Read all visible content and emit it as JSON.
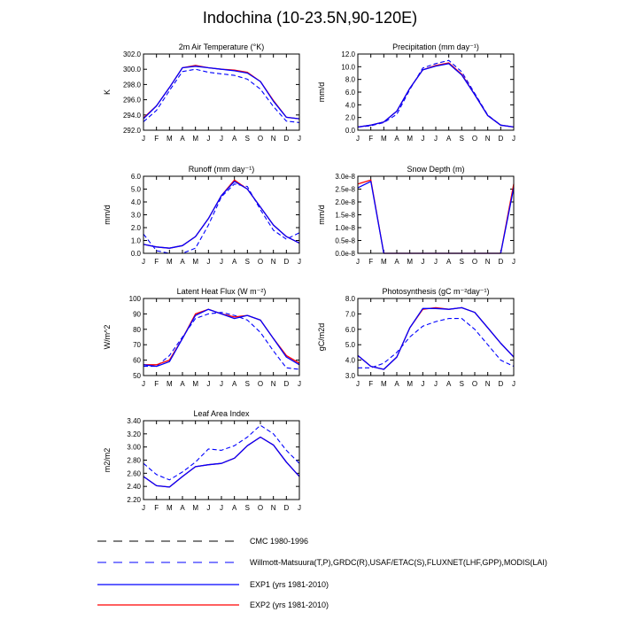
{
  "title": "Indochina (10-23.5N,90-120E)",
  "months": [
    "J",
    "F",
    "M",
    "A",
    "M",
    "J",
    "J",
    "A",
    "S",
    "O",
    "N",
    "D",
    "J"
  ],
  "colors": {
    "cmc": "#000000",
    "obs": "#0000ff",
    "exp1": "#0000ff",
    "exp2": "#ff0000"
  },
  "legend": [
    {
      "key": "cmc",
      "label": "CMC 1980-1996",
      "style": "dashed-black"
    },
    {
      "key": "obs",
      "label": "Willmott-Matsuura(T,P),GRDC(R),USAF/ETAC(S),FLUXNET(LHF,GPP),MODIS(LAI)",
      "style": "dashed-blue"
    },
    {
      "key": "exp1",
      "label": "EXP1 (yrs 1981-2010)",
      "style": "solid-blue"
    },
    {
      "key": "exp2",
      "label": "EXP2 (yrs 1981-2010)",
      "style": "solid-red"
    }
  ],
  "chart_data": [
    {
      "type": "line",
      "title": "2m Air Temperature (°K)",
      "ylabel": "K",
      "ylim": [
        292.0,
        302.0
      ],
      "yticks": [
        "292.0",
        "294.0",
        "296.0",
        "298.0",
        "300.0",
        "302.0"
      ],
      "categories": [
        "J",
        "F",
        "M",
        "A",
        "M",
        "J",
        "J",
        "A",
        "S",
        "O",
        "N",
        "D",
        "J"
      ],
      "series": [
        {
          "key": "obs",
          "values": [
            293.1,
            294.6,
            297.2,
            299.7,
            300.0,
            299.6,
            299.4,
            299.2,
            298.7,
            297.4,
            295.1,
            293.2,
            293.0
          ]
        },
        {
          "key": "exp2",
          "values": [
            293.6,
            295.2,
            297.6,
            300.2,
            300.5,
            300.2,
            300.0,
            299.9,
            299.6,
            298.4,
            295.9,
            293.7,
            293.5
          ]
        },
        {
          "key": "exp1",
          "values": [
            293.5,
            295.2,
            297.6,
            300.2,
            300.4,
            300.2,
            300.0,
            299.8,
            299.5,
            298.4,
            295.8,
            293.7,
            293.5
          ]
        }
      ]
    },
    {
      "type": "line",
      "title": "Precipitation (mm day⁻¹)",
      "ylabel": "mm/d",
      "ylim": [
        0,
        12
      ],
      "yticks": [
        "0.0",
        "2.0",
        "4.0",
        "6.0",
        "8.0",
        "10.0",
        "12.0"
      ],
      "categories": [
        "J",
        "F",
        "M",
        "A",
        "M",
        "J",
        "J",
        "A",
        "S",
        "O",
        "N",
        "D",
        "J"
      ],
      "series": [
        {
          "key": "obs",
          "values": [
            0.5,
            0.7,
            1.2,
            2.5,
            6.4,
            9.8,
            10.5,
            11.0,
            9.2,
            5.8,
            2.4,
            0.8,
            0.5
          ]
        },
        {
          "key": "exp2",
          "values": [
            0.5,
            0.8,
            1.3,
            3.0,
            6.6,
            9.5,
            10.2,
            10.6,
            8.8,
            5.6,
            2.3,
            0.8,
            0.5
          ]
        },
        {
          "key": "exp1",
          "values": [
            0.5,
            0.8,
            1.3,
            3.0,
            6.6,
            9.5,
            10.1,
            10.5,
            8.7,
            5.6,
            2.3,
            0.8,
            0.5
          ]
        }
      ]
    },
    {
      "type": "line",
      "title": "Runoff (mm day⁻¹)",
      "ylabel": "mm/d",
      "ylim": [
        0,
        6
      ],
      "yticks": [
        "0.0",
        "1.0",
        "2.0",
        "3.0",
        "4.0",
        "5.0",
        "6.0"
      ],
      "categories": [
        "J",
        "F",
        "M",
        "A",
        "M",
        "J",
        "J",
        "A",
        "S",
        "O",
        "N",
        "D",
        "J"
      ],
      "series": [
        {
          "key": "obs",
          "values": [
            1.5,
            0.2,
            0.0,
            0.0,
            0.4,
            2.2,
            4.4,
            5.4,
            5.2,
            3.4,
            1.8,
            1.1,
            1.6
          ]
        },
        {
          "key": "exp2",
          "values": [
            0.7,
            0.5,
            0.4,
            0.6,
            1.3,
            2.7,
            4.5,
            5.7,
            5.0,
            3.6,
            2.2,
            1.3,
            0.8
          ]
        },
        {
          "key": "exp1",
          "values": [
            0.7,
            0.5,
            0.4,
            0.6,
            1.3,
            2.7,
            4.5,
            5.6,
            5.0,
            3.6,
            2.2,
            1.3,
            0.8
          ]
        }
      ]
    },
    {
      "type": "line",
      "title": "Snow Depth (m)",
      "ylabel": "mm/d",
      "ylim": [
        0,
        3e-08
      ],
      "yticks": [
        "0.0e-8",
        "0.5e-8",
        "1.0e-8",
        "1.5e-8",
        "2.0e-8",
        "2.5e-8",
        "3.0e-8"
      ],
      "categories": [
        "J",
        "F",
        "M",
        "A",
        "M",
        "J",
        "J",
        "A",
        "S",
        "O",
        "N",
        "D",
        "J"
      ],
      "series": [
        {
          "key": "exp2",
          "values": [
            2.7e-08,
            2.85e-08,
            0,
            0,
            0,
            0,
            0,
            0,
            0,
            0,
            0,
            0,
            2.7e-08
          ]
        },
        {
          "key": "exp1",
          "values": [
            2.55e-08,
            2.8e-08,
            0,
            0,
            0,
            0,
            0,
            0,
            0,
            0,
            0,
            0,
            2.55e-08
          ]
        }
      ]
    },
    {
      "type": "line",
      "title": "Latent Heat Flux (W m⁻²)",
      "ylabel": "W/m^2",
      "ylim": [
        50,
        100
      ],
      "yticks": [
        "50",
        "60",
        "70",
        "80",
        "90",
        "100"
      ],
      "categories": [
        "J",
        "F",
        "M",
        "A",
        "M",
        "J",
        "J",
        "A",
        "S",
        "O",
        "N",
        "D",
        "J"
      ],
      "series": [
        {
          "key": "obs",
          "values": [
            56,
            56,
            63,
            75,
            87,
            90,
            91,
            89,
            86,
            78,
            66,
            55,
            54
          ]
        },
        {
          "key": "exp2",
          "values": [
            57,
            57,
            60,
            74,
            90,
            93,
            90,
            88,
            89,
            86,
            74,
            63,
            58
          ]
        },
        {
          "key": "exp1",
          "values": [
            57,
            56,
            59,
            74,
            89,
            93,
            90,
            87,
            89,
            86,
            74,
            62,
            57
          ]
        }
      ]
    },
    {
      "type": "line",
      "title": "Photosynthesis (gC m⁻²day⁻¹)",
      "ylabel": "gC/m2d",
      "ylim": [
        3.0,
        8.0
      ],
      "yticks": [
        "3.0",
        "4.0",
        "5.0",
        "6.0",
        "7.0",
        "8.0"
      ],
      "categories": [
        "J",
        "F",
        "M",
        "A",
        "M",
        "J",
        "J",
        "A",
        "S",
        "O",
        "N",
        "D",
        "J"
      ],
      "series": [
        {
          "key": "obs",
          "values": [
            3.5,
            3.5,
            3.8,
            4.5,
            5.5,
            6.2,
            6.5,
            6.7,
            6.7,
            6.0,
            5.0,
            4.0,
            3.6
          ]
        },
        {
          "key": "exp2",
          "values": [
            4.3,
            3.6,
            3.4,
            4.2,
            6.1,
            7.3,
            7.4,
            7.3,
            7.4,
            7.1,
            6.1,
            5.1,
            4.2
          ]
        },
        {
          "key": "exp1",
          "values": [
            4.3,
            3.6,
            3.4,
            4.2,
            6.1,
            7.35,
            7.35,
            7.3,
            7.4,
            7.1,
            6.1,
            5.1,
            4.2
          ]
        }
      ]
    },
    {
      "type": "line",
      "title": "Leaf Area Index",
      "ylabel": "m2/m2",
      "ylim": [
        2.2,
        3.4
      ],
      "yticks": [
        "2.20",
        "2.40",
        "2.60",
        "2.80",
        "3.00",
        "3.20",
        "3.40"
      ],
      "categories": [
        "J",
        "F",
        "M",
        "A",
        "M",
        "J",
        "J",
        "A",
        "S",
        "O",
        "N",
        "D",
        "J"
      ],
      "series": [
        {
          "key": "obs",
          "values": [
            2.75,
            2.58,
            2.5,
            2.62,
            2.77,
            2.97,
            2.95,
            3.02,
            3.15,
            3.33,
            3.2,
            2.95,
            2.75
          ]
        },
        {
          "key": "exp2",
          "values": [
            2.55,
            2.41,
            2.39,
            2.55,
            2.7,
            2.73,
            2.75,
            2.83,
            3.02,
            3.15,
            3.03,
            2.77,
            2.55
          ]
        },
        {
          "key": "exp1",
          "values": [
            2.55,
            2.41,
            2.39,
            2.55,
            2.7,
            2.73,
            2.75,
            2.83,
            3.02,
            3.15,
            3.03,
            2.77,
            2.55
          ]
        }
      ]
    }
  ]
}
